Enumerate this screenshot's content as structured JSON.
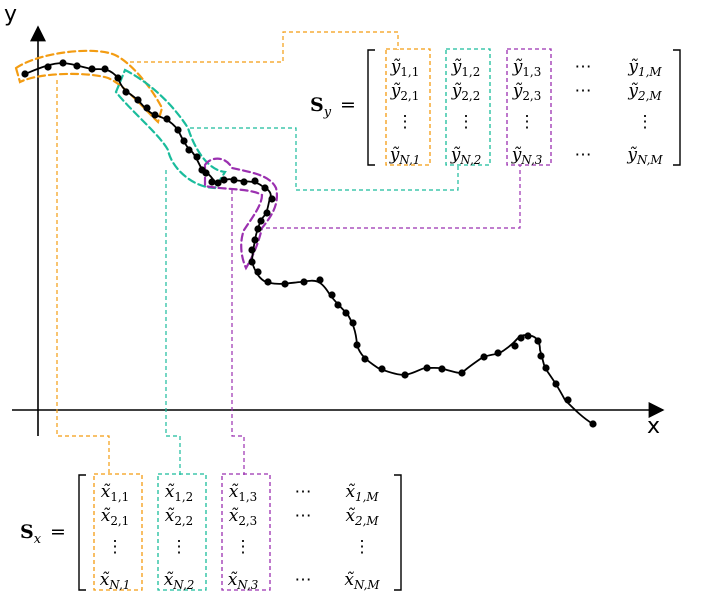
{
  "axes": {
    "x_label": "x",
    "y_label": "y"
  },
  "colors": {
    "col1": "#f39c12",
    "col2": "#1abc9c",
    "col3": "#9b30b0",
    "curve": "#000000"
  },
  "matrix_y": {
    "label": "S",
    "label_sub": "y",
    "rows": [
      [
        "y",
        "1,1",
        "y",
        "1,2",
        "y",
        "1,3",
        "⋯",
        "y",
        "1,M"
      ],
      [
        "y",
        "2,1",
        "y",
        "2,2",
        "y",
        "2,3",
        "⋯",
        "y",
        "2,M"
      ],
      [
        "⋮",
        "",
        "⋮",
        "",
        "⋮",
        "",
        "",
        "⋮",
        ""
      ],
      [
        "y",
        "N,1",
        "y",
        "N,2",
        "y",
        "N,3",
        "⋯",
        "y",
        "N,M"
      ]
    ]
  },
  "matrix_x": {
    "label": "S",
    "label_sub": "x",
    "rows": [
      [
        "x",
        "1,1",
        "x",
        "1,2",
        "x",
        "1,3",
        "⋯",
        "x",
        "1,M"
      ],
      [
        "x",
        "2,1",
        "x",
        "2,2",
        "x",
        "2,3",
        "⋯",
        "x",
        "2,M"
      ],
      [
        "⋮",
        "",
        "⋮",
        "",
        "⋮",
        "",
        "",
        "⋮",
        ""
      ],
      [
        "x",
        "N,1",
        "x",
        "N,2",
        "x",
        "N,3",
        "⋯",
        "x",
        "N,M"
      ]
    ]
  },
  "equals": "="
}
